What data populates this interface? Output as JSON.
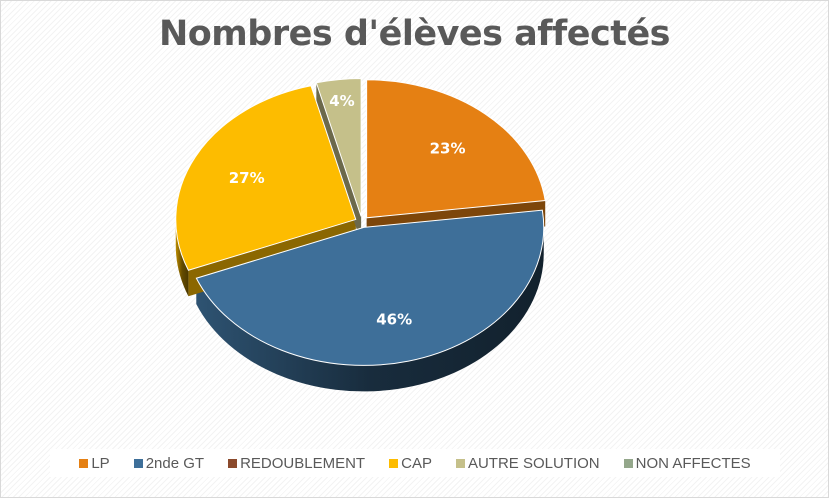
{
  "chart_data": {
    "type": "pie",
    "title": "Nombres d'élèves affectés",
    "categories": [
      "LP",
      "2nde GT",
      "REDOUBLEMENT",
      "CAP",
      "AUTRE SOLUTION",
      "NON AFFECTES"
    ],
    "values": [
      23,
      46,
      0,
      27,
      4,
      0
    ],
    "data_labels": [
      "23%",
      "46%",
      "",
      "27%",
      "4%",
      ""
    ],
    "colors": [
      "#e58013",
      "#3e6f99",
      "#8b4a2c",
      "#fdbc00",
      "#c5c08a",
      "#94a78b"
    ],
    "legend_position": "bottom",
    "style": "3d-exploded"
  }
}
